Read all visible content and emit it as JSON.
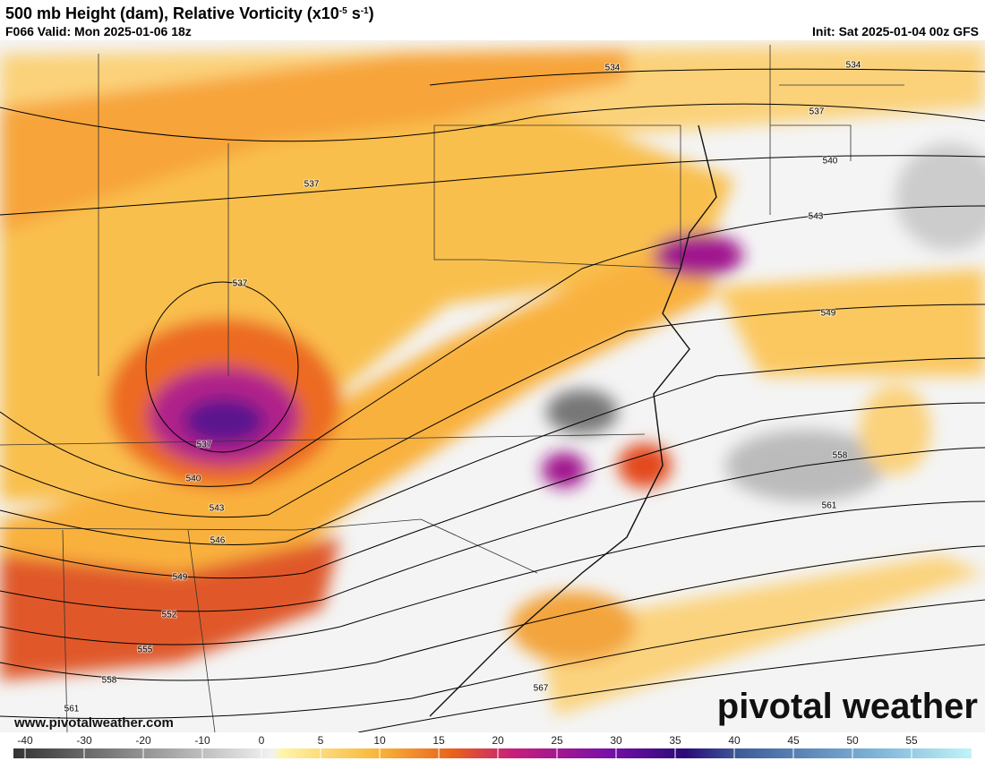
{
  "header": {
    "title": [
      "500 mb Height (dam), Relative Vorticity (x10",
      "-5",
      " s",
      "-1",
      ")"
    ],
    "valid": "F066 Valid: Mon 2025-01-06 18z",
    "init": "Init: Sat 2025-01-04 00z GFS"
  },
  "contours": {
    "labels": [
      534,
      534,
      537,
      537,
      537,
      537,
      540,
      540,
      543,
      543,
      546,
      549,
      549,
      552,
      555,
      558,
      558,
      561,
      561,
      567
    ]
  },
  "colorbar": {
    "ticks": [
      -40,
      -30,
      -20,
      -10,
      0,
      5,
      10,
      15,
      20,
      25,
      30,
      35,
      40,
      45,
      50,
      55
    ]
  },
  "footer": {
    "website": "www.pivotalweather.com",
    "brand": "pivotal weather"
  }
}
